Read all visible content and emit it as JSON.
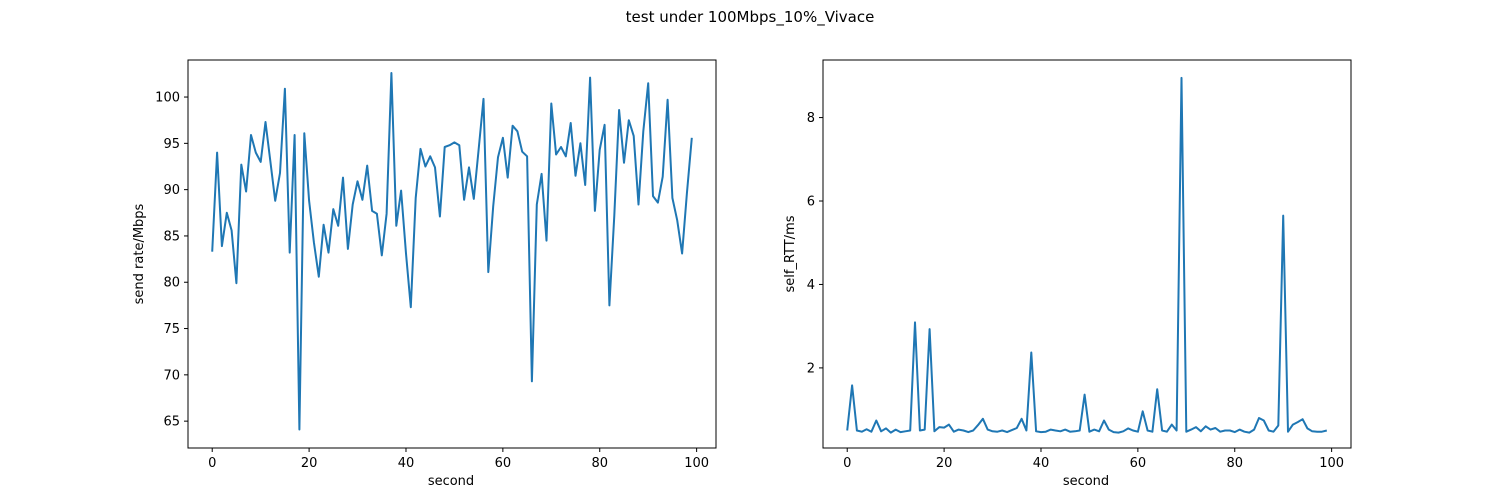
{
  "figure": {
    "suptitle": "test under 100Mbps_10%_Vivace"
  },
  "chart_data": [
    {
      "type": "line",
      "title": "",
      "xlabel": "second",
      "ylabel": "send rate/Mbps",
      "xlim": [
        -5,
        104
      ],
      "ylim": [
        62.1,
        104.0
      ],
      "xticks": [
        0,
        20,
        40,
        60,
        80,
        100
      ],
      "yticks": [
        65,
        70,
        75,
        80,
        85,
        90,
        95,
        100
      ],
      "grid": false,
      "color": "#1f77b4",
      "series": [
        {
          "x": [
            0,
            1,
            2,
            3,
            4,
            5,
            6,
            7,
            8,
            9,
            10,
            11,
            12,
            13,
            14,
            15,
            16,
            17,
            18,
            19,
            20,
            21,
            22,
            23,
            24,
            25,
            26,
            27,
            28,
            29,
            30,
            31,
            32,
            33,
            34,
            35,
            36,
            37,
            38,
            39,
            40,
            41,
            42,
            43,
            44,
            45,
            46,
            47,
            48,
            49,
            50,
            51,
            52,
            53,
            54,
            55,
            56,
            57,
            58,
            59,
            60,
            61,
            62,
            63,
            64,
            65,
            66,
            67,
            68,
            69,
            70,
            71,
            72,
            73,
            74,
            75,
            76,
            77,
            78,
            79,
            80,
            81,
            82,
            83,
            84,
            85,
            86,
            87,
            88,
            89,
            90,
            91,
            92,
            93,
            94,
            95,
            96,
            97,
            98,
            99
          ],
          "y": [
            83.3,
            94.0,
            83.9,
            87.5,
            85.6,
            79.9,
            92.7,
            89.8,
            95.9,
            94.0,
            93.0,
            97.3,
            93.1,
            88.8,
            91.8,
            100.9,
            83.2,
            95.9,
            64.1,
            96.1,
            88.8,
            84.3,
            80.6,
            86.2,
            83.2,
            87.9,
            86.1,
            91.3,
            83.6,
            88.4,
            90.9,
            88.9,
            92.6,
            87.7,
            87.4,
            82.9,
            87.4,
            102.6,
            86.1,
            89.9,
            83.1,
            77.3,
            89.1,
            94.4,
            92.5,
            93.6,
            92.4,
            87.1,
            94.6,
            94.8,
            95.1,
            94.8,
            88.9,
            92.4,
            89.0,
            94.3,
            99.8,
            81.1,
            88.2,
            93.5,
            95.6,
            91.3,
            96.9,
            96.3,
            94.1,
            93.6,
            69.3,
            88.4,
            91.7,
            84.5,
            99.3,
            93.8,
            94.6,
            93.6,
            97.2,
            91.5,
            95.0,
            90.5,
            102.1,
            87.7,
            94.3,
            97.0,
            77.5,
            87.2,
            98.6,
            92.9,
            97.5,
            95.8,
            88.4,
            96.3,
            101.5,
            89.3,
            88.6,
            91.4,
            99.7,
            89.1,
            86.7,
            83.1,
            89.6,
            95.6
          ]
        }
      ]
    },
    {
      "type": "line",
      "title": "",
      "xlabel": "second",
      "ylabel": "self_RTT/ms",
      "xlim": [
        -5,
        104
      ],
      "ylim": [
        0.08,
        9.38
      ],
      "xticks": [
        0,
        20,
        40,
        60,
        80,
        100
      ],
      "yticks": [
        2,
        4,
        6,
        8
      ],
      "grid": false,
      "color": "#1f77b4",
      "series": [
        {
          "x": [
            0,
            1,
            2,
            3,
            4,
            5,
            6,
            7,
            8,
            9,
            10,
            11,
            12,
            13,
            14,
            15,
            16,
            17,
            18,
            19,
            20,
            21,
            22,
            23,
            24,
            25,
            26,
            27,
            28,
            29,
            30,
            31,
            32,
            33,
            34,
            35,
            36,
            37,
            38,
            39,
            40,
            41,
            42,
            43,
            44,
            45,
            46,
            47,
            48,
            49,
            50,
            51,
            52,
            53,
            54,
            55,
            56,
            57,
            58,
            59,
            60,
            61,
            62,
            63,
            64,
            65,
            66,
            67,
            68,
            69,
            70,
            71,
            72,
            73,
            74,
            75,
            76,
            77,
            78,
            79,
            80,
            81,
            82,
            83,
            84,
            85,
            86,
            87,
            88,
            89,
            90,
            91,
            92,
            93,
            94,
            95,
            96,
            97,
            98,
            99
          ],
          "y": [
            0.5,
            1.58,
            0.5,
            0.47,
            0.53,
            0.47,
            0.74,
            0.48,
            0.55,
            0.45,
            0.52,
            0.46,
            0.48,
            0.5,
            3.09,
            0.5,
            0.52,
            2.93,
            0.48,
            0.58,
            0.57,
            0.64,
            0.47,
            0.52,
            0.5,
            0.46,
            0.5,
            0.63,
            0.78,
            0.52,
            0.48,
            0.47,
            0.5,
            0.46,
            0.51,
            0.56,
            0.78,
            0.5,
            2.37,
            0.48,
            0.46,
            0.47,
            0.52,
            0.5,
            0.48,
            0.52,
            0.47,
            0.48,
            0.5,
            1.36,
            0.47,
            0.52,
            0.48,
            0.74,
            0.52,
            0.46,
            0.45,
            0.48,
            0.55,
            0.5,
            0.47,
            0.96,
            0.5,
            0.47,
            1.49,
            0.5,
            0.47,
            0.64,
            0.5,
            8.95,
            0.47,
            0.52,
            0.58,
            0.48,
            0.6,
            0.52,
            0.56,
            0.47,
            0.5,
            0.5,
            0.46,
            0.52,
            0.47,
            0.45,
            0.52,
            0.8,
            0.74,
            0.5,
            0.47,
            0.62,
            5.65,
            0.47,
            0.64,
            0.7,
            0.77,
            0.55,
            0.48,
            0.47,
            0.47,
            0.5
          ]
        }
      ]
    }
  ]
}
